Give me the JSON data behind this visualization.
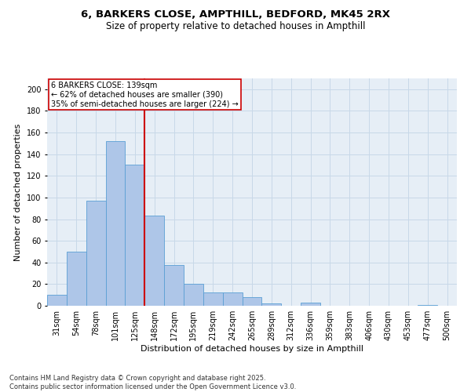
{
  "title1": "6, BARKERS CLOSE, AMPTHILL, BEDFORD, MK45 2RX",
  "title2": "Size of property relative to detached houses in Ampthill",
  "xlabel": "Distribution of detached houses by size in Ampthill",
  "ylabel": "Number of detached properties",
  "categories": [
    "31sqm",
    "54sqm",
    "78sqm",
    "101sqm",
    "125sqm",
    "148sqm",
    "172sqm",
    "195sqm",
    "219sqm",
    "242sqm",
    "265sqm",
    "289sqm",
    "312sqm",
    "336sqm",
    "359sqm",
    "383sqm",
    "406sqm",
    "430sqm",
    "453sqm",
    "477sqm",
    "500sqm"
  ],
  "values": [
    10,
    50,
    97,
    152,
    130,
    83,
    38,
    20,
    12,
    12,
    8,
    2,
    0,
    3,
    0,
    0,
    0,
    0,
    0,
    1,
    0
  ],
  "bar_color": "#aec6e8",
  "bar_edge_color": "#5a9fd4",
  "vline_pos": 4.5,
  "vline_color": "#cc0000",
  "annotation_text": "6 BARKERS CLOSE: 139sqm\n← 62% of detached houses are smaller (390)\n35% of semi-detached houses are larger (224) →",
  "annotation_box_color": "#ffffff",
  "annotation_box_edge": "#cc0000",
  "ylim": [
    0,
    210
  ],
  "yticks": [
    0,
    20,
    40,
    60,
    80,
    100,
    120,
    140,
    160,
    180,
    200
  ],
  "grid_color": "#c8d8e8",
  "bg_color": "#e6eef6",
  "footnote": "Contains HM Land Registry data © Crown copyright and database right 2025.\nContains public sector information licensed under the Open Government Licence v3.0.",
  "title_fontsize": 9.5,
  "subtitle_fontsize": 8.5,
  "axis_label_fontsize": 8,
  "tick_fontsize": 7,
  "annotation_fontsize": 7,
  "footnote_fontsize": 6
}
